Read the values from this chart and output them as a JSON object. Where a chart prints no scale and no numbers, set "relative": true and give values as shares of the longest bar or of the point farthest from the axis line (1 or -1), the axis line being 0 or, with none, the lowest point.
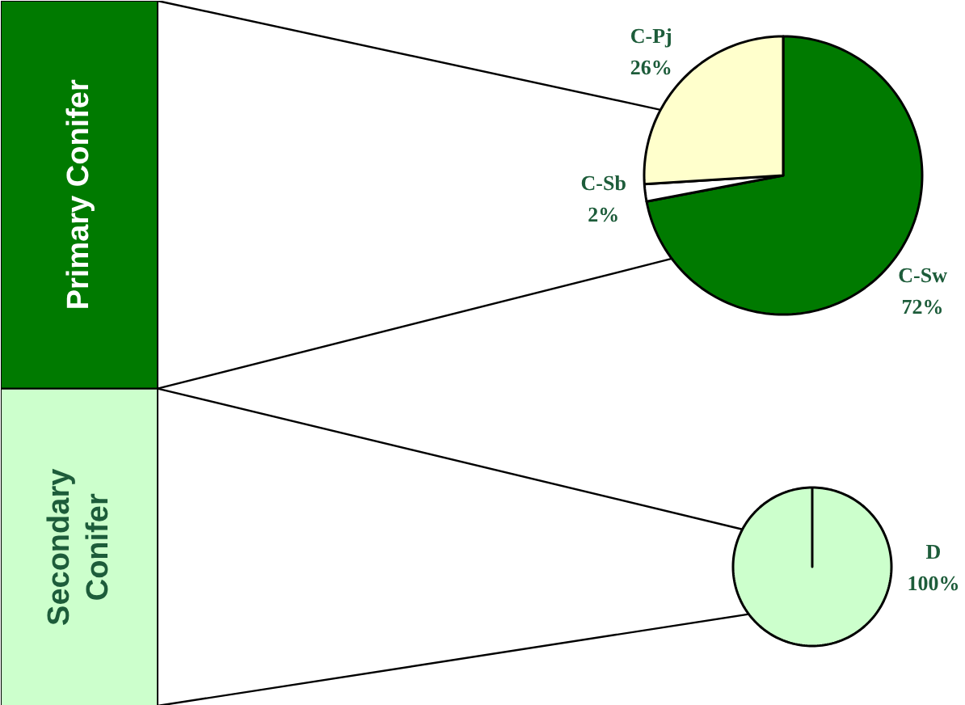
{
  "chart_data": [
    {
      "type": "bar",
      "stacked": true,
      "relative": true,
      "categories": [
        null
      ],
      "series": [
        {
          "name": "Secondary Conifer",
          "color": "#ccffcc",
          "values": [
            0.45
          ]
        },
        {
          "name": "Primary Conifer",
          "color": "#007a00",
          "values": [
            0.55
          ]
        }
      ]
    },
    {
      "type": "pie",
      "categories": [
        "C-Sw",
        "C-Sb",
        "C-Pj"
      ],
      "values": [
        72,
        2,
        26
      ],
      "value_labels": [
        "72%",
        "2%",
        "26%"
      ],
      "colors": [
        "#007a00",
        "#ffffff",
        "#ffffcc"
      ]
    },
    {
      "type": "pie",
      "categories": [
        "D"
      ],
      "values": [
        100
      ],
      "value_labels": [
        "100%"
      ],
      "colors": [
        "#ccffcc"
      ]
    }
  ]
}
